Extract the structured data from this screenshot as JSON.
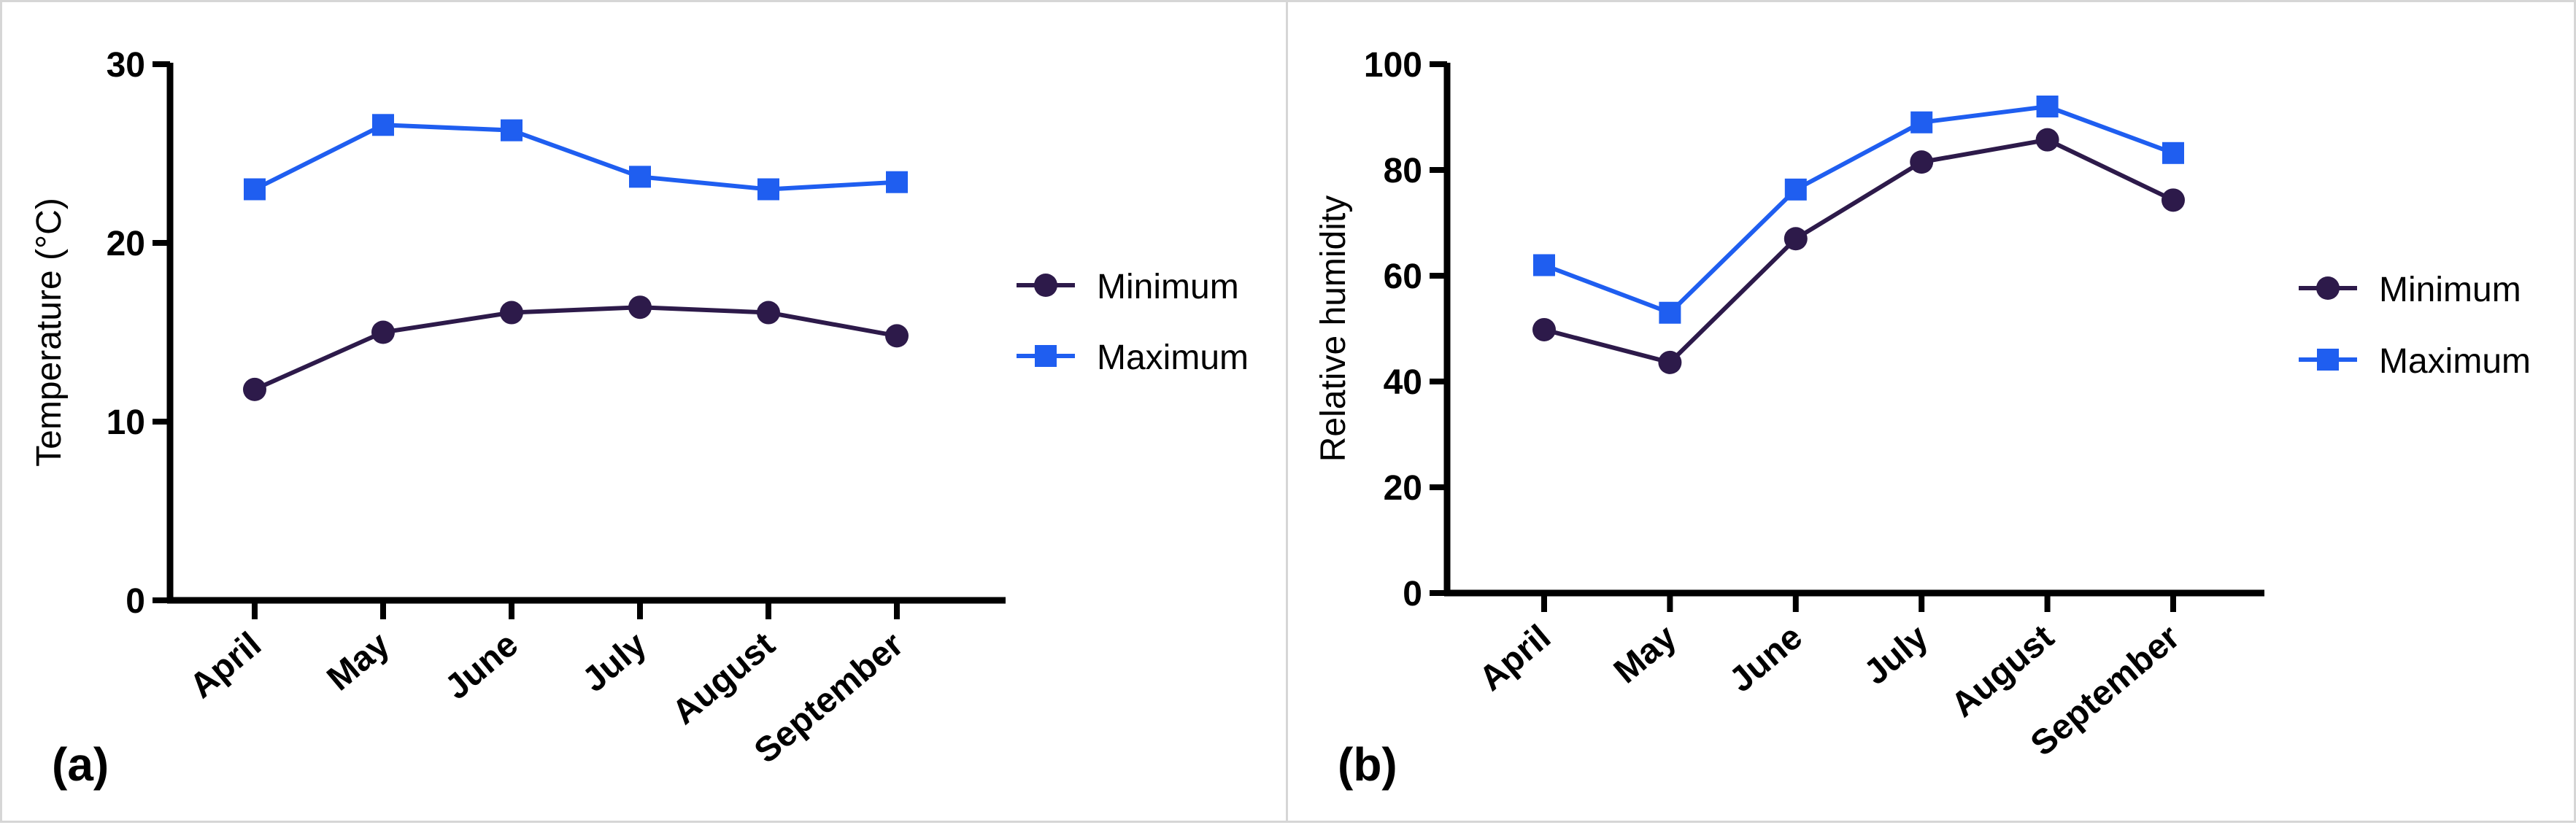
{
  "chart_data": [
    {
      "type": "line",
      "panel_label": "(a)",
      "ylabel": "Temperature (°C)",
      "xlabel": "",
      "categories": [
        "April",
        "May",
        "June",
        "July",
        "August",
        "September"
      ],
      "ylim": [
        0,
        30
      ],
      "yticks": [
        0,
        10,
        20,
        30
      ],
      "legend_position": "right",
      "series": [
        {
          "name": "Minimum",
          "marker": "circle",
          "color": "#2d1a4a",
          "values": [
            11.8,
            15.0,
            16.1,
            16.4,
            16.1,
            14.8
          ]
        },
        {
          "name": "Maximum",
          "marker": "square",
          "color": "#1f5ef0",
          "values": [
            23.0,
            26.6,
            26.3,
            23.7,
            23.0,
            23.4
          ]
        }
      ]
    },
    {
      "type": "line",
      "panel_label": "(b)",
      "ylabel": "Relative humidity",
      "xlabel": "",
      "categories": [
        "April",
        "May",
        "June",
        "July",
        "August",
        "September"
      ],
      "ylim": [
        0,
        100
      ],
      "yticks": [
        0,
        20,
        40,
        60,
        80,
        100
      ],
      "legend_position": "right",
      "series": [
        {
          "name": "Minimum",
          "marker": "circle",
          "color": "#2d1a4a",
          "values": [
            49.8,
            43.6,
            67.0,
            81.5,
            85.7,
            74.3
          ]
        },
        {
          "name": "Maximum",
          "marker": "square",
          "color": "#1f5ef0",
          "values": [
            62.0,
            53.0,
            76.3,
            89.0,
            92.0,
            83.2
          ]
        }
      ]
    }
  ]
}
